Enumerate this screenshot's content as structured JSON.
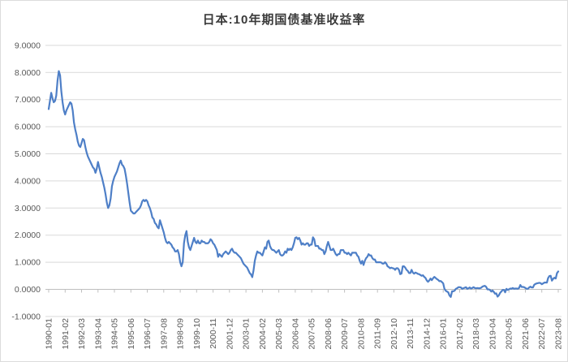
{
  "title": "日本:10年期国债基准收益率",
  "chart_data": {
    "type": "line",
    "title": "日本:10年期国债基准收益率",
    "x_start": "1990-01",
    "x_end": "2023-08",
    "x_frequency": "monthly",
    "x_tick_interval_months": 13,
    "x_tick_labels": [
      "1990-01",
      "1991-02",
      "1992-03",
      "1993-04",
      "1994-05",
      "1995-06",
      "1996-07",
      "1997-08",
      "1998-09",
      "1999-10",
      "2000-11",
      "2001-12",
      "2003-01",
      "2004-02",
      "2005-03",
      "2006-04",
      "2007-05",
      "2008-06",
      "2009-07",
      "2010-08",
      "2011-09",
      "2012-10",
      "2013-11",
      "2014-12",
      "2016-01",
      "2017-02",
      "2018-03",
      "2019-04",
      "2020-05",
      "2021-06",
      "2022-07",
      "2023-08"
    ],
    "y_tick_labels": [
      "9.0000",
      "8.0000",
      "7.0000",
      "6.0000",
      "5.0000",
      "4.0000",
      "3.0000",
      "2.0000",
      "1.0000",
      "0.0000",
      "-1.0000"
    ],
    "ylim": [
      -1,
      9
    ],
    "grid": "horizontal",
    "legend": "none",
    "colors": {
      "line": "#4e7fc7",
      "grid": "#d9d9d9",
      "axis": "#bfbfbf",
      "tick_label": "#595959",
      "title": "#3a3a3a",
      "background": "#ffffff",
      "border": "#dcdcdc"
    },
    "values": [
      6.65,
      6.95,
      7.25,
      7.05,
      6.9,
      6.95,
      7.15,
      7.7,
      8.05,
      7.9,
      7.3,
      6.9,
      6.6,
      6.45,
      6.6,
      6.7,
      6.8,
      6.9,
      6.85,
      6.6,
      6.15,
      5.9,
      5.7,
      5.45,
      5.3,
      5.25,
      5.4,
      5.55,
      5.5,
      5.25,
      5.05,
      4.9,
      4.8,
      4.7,
      4.6,
      4.5,
      4.45,
      4.3,
      4.45,
      4.7,
      4.5,
      4.3,
      4.15,
      3.95,
      3.75,
      3.5,
      3.2,
      3.0,
      3.1,
      3.35,
      3.8,
      4.0,
      4.15,
      4.25,
      4.35,
      4.5,
      4.65,
      4.75,
      4.6,
      4.55,
      4.45,
      4.2,
      3.9,
      3.55,
      3.2,
      2.9,
      2.85,
      2.8,
      2.8,
      2.85,
      2.9,
      2.95,
      3.0,
      3.1,
      3.25,
      3.3,
      3.25,
      3.3,
      3.25,
      3.1,
      3.0,
      2.85,
      2.65,
      2.6,
      2.45,
      2.4,
      2.3,
      2.25,
      2.55,
      2.4,
      2.25,
      2.1,
      1.9,
      1.75,
      1.7,
      1.75,
      1.7,
      1.65,
      1.55,
      1.5,
      1.4,
      1.4,
      1.45,
      1.3,
      1.0,
      0.85,
      1.0,
      1.7,
      2.0,
      2.15,
      1.75,
      1.55,
      1.45,
      1.6,
      1.75,
      1.9,
      1.75,
      1.7,
      1.8,
      1.7,
      1.7,
      1.8,
      1.75,
      1.75,
      1.7,
      1.7,
      1.7,
      1.75,
      1.85,
      1.8,
      1.7,
      1.65,
      1.55,
      1.45,
      1.2,
      1.3,
      1.25,
      1.2,
      1.3,
      1.35,
      1.4,
      1.35,
      1.3,
      1.35,
      1.45,
      1.5,
      1.4,
      1.35,
      1.35,
      1.3,
      1.25,
      1.2,
      1.15,
      1.05,
      0.95,
      0.9,
      0.85,
      0.8,
      0.7,
      0.6,
      0.55,
      0.45,
      0.7,
      1.05,
      1.25,
      1.4,
      1.35,
      1.35,
      1.3,
      1.25,
      1.4,
      1.55,
      1.5,
      1.75,
      1.8,
      1.6,
      1.5,
      1.45,
      1.45,
      1.4,
      1.35,
      1.4,
      1.45,
      1.3,
      1.25,
      1.25,
      1.3,
      1.4,
      1.35,
      1.5,
      1.45,
      1.5,
      1.45,
      1.55,
      1.7,
      1.9,
      1.92,
      1.85,
      1.9,
      1.8,
      1.65,
      1.7,
      1.65,
      1.65,
      1.7,
      1.7,
      1.6,
      1.65,
      1.65,
      1.92,
      1.85,
      1.6,
      1.6,
      1.6,
      1.5,
      1.5,
      1.45,
      1.45,
      1.3,
      1.4,
      1.6,
      1.75,
      1.6,
      1.45,
      1.45,
      1.5,
      1.4,
      1.3,
      1.25,
      1.3,
      1.3,
      1.45,
      1.45,
      1.45,
      1.35,
      1.35,
      1.3,
      1.35,
      1.3,
      1.25,
      1.35,
      1.35,
      1.35,
      1.35,
      1.25,
      1.2,
      1.05,
      0.95,
      1.05,
      0.9,
      1.05,
      1.15,
      1.2,
      1.3,
      1.25,
      1.25,
      1.15,
      1.1,
      1.1,
      1.0,
      1.0,
      1.0,
      1.0,
      0.99,
      0.95,
      0.95,
      1.0,
      0.95,
      0.85,
      0.82,
      0.78,
      0.8,
      0.78,
      0.77,
      0.72,
      0.78,
      0.78,
      0.72,
      0.56,
      0.58,
      0.85,
      0.85,
      0.8,
      0.72,
      0.68,
      0.6,
      0.6,
      0.72,
      0.62,
      0.58,
      0.62,
      0.6,
      0.57,
      0.56,
      0.53,
      0.5,
      0.52,
      0.46,
      0.42,
      0.33,
      0.28,
      0.33,
      0.4,
      0.34,
      0.41,
      0.46,
      0.42,
      0.38,
      0.35,
      0.3,
      0.31,
      0.27,
      0.22,
      0.02,
      -0.05,
      -0.08,
      -0.11,
      -0.23,
      -0.28,
      -0.07,
      -0.07,
      -0.05,
      0.02,
      0.04,
      0.08,
      0.08,
      0.07,
      0.02,
      0.04,
      0.06,
      0.08,
      0.02,
      0.04,
      0.07,
      0.03,
      0.05,
      0.08,
      0.05,
      0.04,
      0.05,
      0.04,
      0.04,
      0.06,
      0.1,
      0.12,
      0.13,
      0.09,
      0.0,
      0.0,
      -0.02,
      -0.08,
      -0.04,
      -0.09,
      -0.16,
      -0.15,
      -0.27,
      -0.22,
      -0.13,
      -0.08,
      -0.02,
      -0.02,
      -0.11,
      0.02,
      -0.02,
      0.0,
      0.03,
      0.02,
      0.05,
      0.02,
      0.03,
      0.03,
      0.02,
      0.05,
      0.16,
      0.09,
      0.09,
      0.08,
      0.05,
      0.02,
      0.02,
      0.07,
      0.1,
      0.07,
      0.07,
      0.17,
      0.2,
      0.22,
      0.23,
      0.24,
      0.23,
      0.19,
      0.22,
      0.25,
      0.25,
      0.25,
      0.42,
      0.49,
      0.5,
      0.32,
      0.39,
      0.43,
      0.4,
      0.6,
      0.66
    ]
  }
}
